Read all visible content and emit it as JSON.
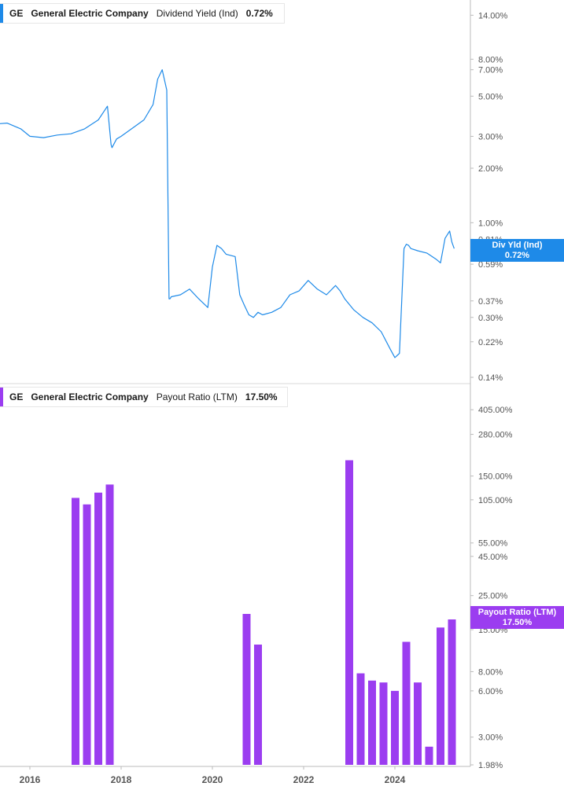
{
  "colors": {
    "yield_line": "#1e8ae8",
    "payout_bars": "#9b3df0",
    "axis": "#bbbbbb",
    "tick_text": "#555555",
    "divider": "#d9d9d9"
  },
  "top_legend": {
    "ticker": "GE",
    "company": "General Electric Company",
    "metric": "Dividend Yield (Ind)",
    "value": "0.72%"
  },
  "bottom_legend": {
    "ticker": "GE",
    "company": "General Electric Company",
    "metric": "Payout Ratio (LTM)",
    "value": "17.50%"
  },
  "top_tag": {
    "label": "Div Yld (Ind)",
    "value": "0.72%"
  },
  "bottom_tag": {
    "label": "Payout Ratio (LTM)",
    "value": "17.50%"
  },
  "chart_data": [
    {
      "type": "line",
      "series": [
        {
          "name": "Dividend Yield (Ind)",
          "x": [
            2015.2,
            2015.5,
            2015.8,
            2016.0,
            2016.3,
            2016.6,
            2016.9,
            2017.2,
            2017.5,
            2017.7,
            2017.78,
            2017.8,
            2017.9,
            2018.0,
            2018.3,
            2018.5,
            2018.7,
            2018.8,
            2018.9,
            2019.0,
            2019.05,
            2019.07,
            2019.1,
            2019.3,
            2019.5,
            2019.7,
            2019.9,
            2020.0,
            2020.1,
            2020.2,
            2020.3,
            2020.5,
            2020.6,
            2020.7,
            2020.8,
            2020.9,
            2021.0,
            2021.1,
            2021.3,
            2021.5,
            2021.7,
            2021.9,
            2022.1,
            2022.3,
            2022.5,
            2022.7,
            2022.8,
            2022.9,
            2023.1,
            2023.3,
            2023.5,
            2023.7,
            2023.9,
            2024.0,
            2024.1,
            2024.2,
            2024.25,
            2024.3,
            2024.35,
            2024.5,
            2024.7,
            2024.9,
            2025.0,
            2025.1,
            2025.2,
            2025.25,
            2025.3
          ],
          "values": [
            3.5,
            3.55,
            3.3,
            3.0,
            2.95,
            3.05,
            3.1,
            3.3,
            3.7,
            4.4,
            2.7,
            2.6,
            2.9,
            3.0,
            3.4,
            3.7,
            4.5,
            6.2,
            7.0,
            5.4,
            0.38,
            0.38,
            0.39,
            0.4,
            0.43,
            0.38,
            0.34,
            0.57,
            0.75,
            0.72,
            0.67,
            0.65,
            0.4,
            0.35,
            0.31,
            0.3,
            0.32,
            0.31,
            0.32,
            0.34,
            0.4,
            0.42,
            0.48,
            0.43,
            0.4,
            0.45,
            0.42,
            0.38,
            0.33,
            0.3,
            0.28,
            0.25,
            0.2,
            0.18,
            0.19,
            0.72,
            0.76,
            0.75,
            0.72,
            0.7,
            0.68,
            0.63,
            0.6,
            0.82,
            0.9,
            0.78,
            0.72
          ]
        }
      ],
      "y_ticks": [
        "14.00%",
        "8.00%",
        "7.00%",
        "5.00%",
        "3.00%",
        "2.00%",
        "1.00%",
        "0.81%",
        "0.59%",
        "0.37%",
        "0.30%",
        "0.22%",
        "0.14%"
      ],
      "scale": "log",
      "ylim": [
        0.14,
        16
      ]
    },
    {
      "type": "bar",
      "series": [
        {
          "name": "Payout Ratio (LTM)",
          "x": [
            2017.0,
            2017.25,
            2017.5,
            2017.75,
            2020.75,
            2021.0,
            2023.0,
            2023.25,
            2023.5,
            2023.75,
            2024.0,
            2024.25,
            2024.5,
            2024.75,
            2025.0,
            2025.25
          ],
          "values": [
            108,
            98,
            117,
            132,
            19,
            12,
            190,
            7.8,
            7.0,
            6.8,
            6.0,
            12.5,
            6.8,
            2.6,
            15.5,
            17.5
          ]
        }
      ],
      "y_ticks": [
        "405.00%",
        "280.00%",
        "150.00%",
        "105.00%",
        "55.00%",
        "45.00%",
        "25.00%",
        "15.00%",
        "8.00%",
        "6.00%",
        "3.00%",
        "1.98%"
      ],
      "scale": "log",
      "ylim": [
        1.98,
        520
      ],
      "x_ticks": [
        "2016",
        "2018",
        "2020",
        "2022",
        "2024"
      ]
    }
  ]
}
